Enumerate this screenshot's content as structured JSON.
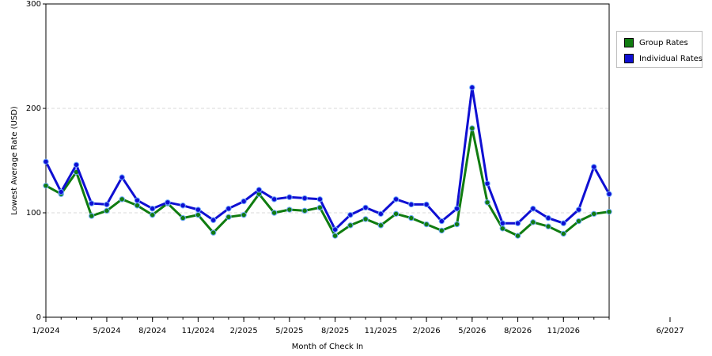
{
  "chart_data": {
    "type": "line",
    "title": "",
    "xlabel": "Month of Check In",
    "ylabel": "Lowest Average Rate (USD)",
    "ylim": [
      0,
      300
    ],
    "yticks": [
      0,
      100,
      200,
      300
    ],
    "grid": "horizontal dashed",
    "legend_position": "top-right",
    "x_start": "1/2024",
    "x_end": "6/2027",
    "x_tick_labels": [
      "1/2024",
      "5/2024",
      "8/2024",
      "11/2024",
      "2/2025",
      "5/2025",
      "8/2025",
      "11/2025",
      "2/2026",
      "5/2026",
      "8/2026",
      "11/2026",
      "6/2027"
    ],
    "series": [
      {
        "name": "Group Rates",
        "color": "#107c10",
        "values": [
          126,
          118,
          139,
          97,
          102,
          113,
          107,
          98,
          109,
          95,
          98,
          81,
          96,
          98,
          118,
          100,
          103,
          102,
          105,
          78,
          88,
          94,
          88,
          99,
          95,
          89,
          83,
          89,
          181,
          110,
          85,
          78,
          91,
          87,
          80,
          92,
          99,
          101
        ]
      },
      {
        "name": "Individual Rates",
        "color": "#0f0fd2",
        "values": [
          149,
          120,
          146,
          109,
          108,
          134,
          112,
          104,
          110,
          107,
          103,
          93,
          104,
          111,
          122,
          113,
          115,
          114,
          113,
          84,
          98,
          105,
          99,
          113,
          108,
          108,
          92,
          104,
          220,
          128,
          90,
          90,
          104,
          95,
          90,
          103,
          144,
          118
        ]
      }
    ]
  }
}
